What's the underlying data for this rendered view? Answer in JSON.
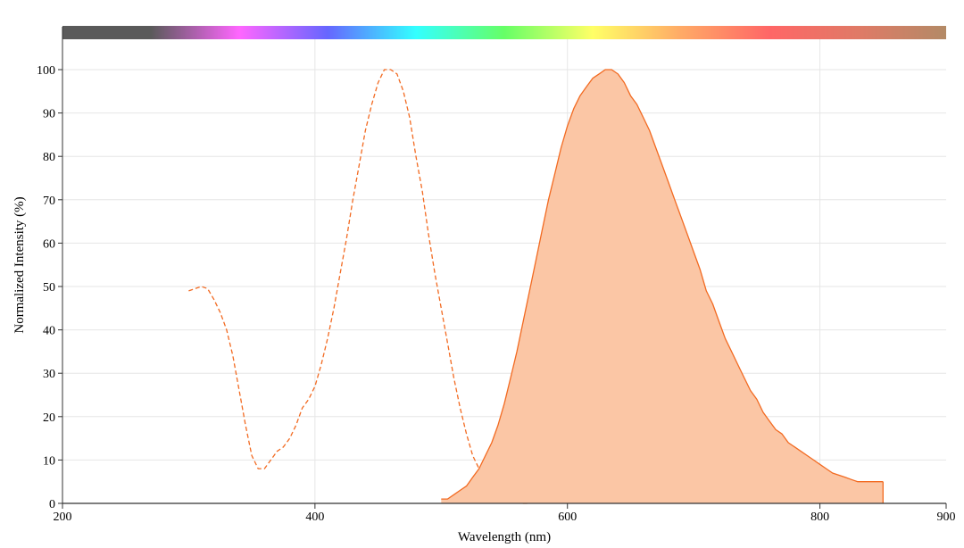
{
  "chart_data": {
    "type": "area",
    "xlabel": "Wavelength (nm)",
    "ylabel": "Normalized Intensity (%)",
    "xlim": [
      200,
      900
    ],
    "ylim": [
      0,
      105
    ],
    "x_ticks": [
      200,
      400,
      600,
      800,
      900
    ],
    "y_ticks": [
      0,
      10,
      20,
      30,
      40,
      50,
      60,
      70,
      80,
      90,
      100
    ],
    "grid": true,
    "legend": "none",
    "colors": {
      "series": "#f26a21",
      "fill": "#fbc6a5",
      "grid": "#e6e6e6",
      "axis": "#333333"
    },
    "spectrum_bar_colors": [
      "#5a5a5a",
      "#5a5a5a",
      "#ff66ff",
      "#6666ff",
      "#33ffff",
      "#66ff66",
      "#ffff66",
      "#ffaa66",
      "#ff6666",
      "#e07a66",
      "#b38a66"
    ],
    "series": [
      {
        "style": "dashed",
        "filled": false,
        "points": [
          [
            300,
            49
          ],
          [
            305,
            49.5
          ],
          [
            310,
            50
          ],
          [
            315,
            49.5
          ],
          [
            320,
            47
          ],
          [
            325,
            44
          ],
          [
            330,
            40
          ],
          [
            335,
            34
          ],
          [
            340,
            26
          ],
          [
            345,
            18
          ],
          [
            350,
            11
          ],
          [
            355,
            8
          ],
          [
            360,
            8
          ],
          [
            365,
            10
          ],
          [
            370,
            12
          ],
          [
            375,
            13
          ],
          [
            380,
            15
          ],
          [
            385,
            18
          ],
          [
            390,
            22
          ],
          [
            395,
            24
          ],
          [
            400,
            27
          ],
          [
            405,
            32
          ],
          [
            410,
            38
          ],
          [
            415,
            45
          ],
          [
            420,
            53
          ],
          [
            425,
            61
          ],
          [
            430,
            70
          ],
          [
            435,
            78
          ],
          [
            440,
            86
          ],
          [
            445,
            92
          ],
          [
            450,
            97
          ],
          [
            455,
            100
          ],
          [
            460,
            100
          ],
          [
            465,
            99
          ],
          [
            470,
            95
          ],
          [
            475,
            89
          ],
          [
            480,
            80
          ],
          [
            485,
            72
          ],
          [
            490,
            62
          ],
          [
            495,
            53
          ],
          [
            500,
            45
          ],
          [
            505,
            37
          ],
          [
            510,
            29
          ],
          [
            515,
            22
          ],
          [
            520,
            16
          ],
          [
            525,
            11
          ],
          [
            530,
            8
          ],
          [
            535,
            5.5
          ],
          [
            540,
            4
          ],
          [
            545,
            2.5
          ],
          [
            550,
            1.5
          ],
          [
            555,
            0.5
          ],
          [
            560,
            0.3
          ],
          [
            565,
            0
          ],
          [
            570,
            0
          ],
          [
            575,
            1
          ],
          [
            580,
            1
          ],
          [
            585,
            1
          ],
          [
            590,
            1
          ],
          [
            595,
            1
          ],
          [
            600,
            2
          ]
        ]
      },
      {
        "style": "solid",
        "filled": true,
        "points": [
          [
            500,
            1
          ],
          [
            505,
            1
          ],
          [
            510,
            2
          ],
          [
            515,
            3
          ],
          [
            520,
            4
          ],
          [
            525,
            6
          ],
          [
            530,
            8
          ],
          [
            535,
            11
          ],
          [
            540,
            14
          ],
          [
            545,
            18
          ],
          [
            550,
            23
          ],
          [
            555,
            29
          ],
          [
            560,
            35
          ],
          [
            565,
            42
          ],
          [
            570,
            49
          ],
          [
            575,
            56
          ],
          [
            580,
            63
          ],
          [
            585,
            70
          ],
          [
            590,
            76
          ],
          [
            595,
            82
          ],
          [
            600,
            87
          ],
          [
            605,
            91
          ],
          [
            610,
            94
          ],
          [
            615,
            96
          ],
          [
            620,
            98
          ],
          [
            625,
            99
          ],
          [
            630,
            100
          ],
          [
            635,
            100
          ],
          [
            640,
            99
          ],
          [
            645,
            97
          ],
          [
            650,
            94
          ],
          [
            655,
            92
          ],
          [
            660,
            89
          ],
          [
            665,
            86
          ],
          [
            670,
            82
          ],
          [
            675,
            78
          ],
          [
            680,
            74
          ],
          [
            685,
            70
          ],
          [
            690,
            66
          ],
          [
            695,
            62
          ],
          [
            700,
            58
          ],
          [
            705,
            54
          ],
          [
            710,
            49
          ],
          [
            715,
            46
          ],
          [
            720,
            42
          ],
          [
            725,
            38
          ],
          [
            730,
            35
          ],
          [
            735,
            32
          ],
          [
            740,
            29
          ],
          [
            745,
            26
          ],
          [
            750,
            24
          ],
          [
            755,
            21
          ],
          [
            760,
            19
          ],
          [
            765,
            17
          ],
          [
            770,
            16
          ],
          [
            775,
            14
          ],
          [
            780,
            13
          ],
          [
            785,
            12
          ],
          [
            790,
            11
          ],
          [
            795,
            10
          ],
          [
            800,
            9
          ],
          [
            805,
            8
          ],
          [
            810,
            7
          ],
          [
            815,
            6.5
          ],
          [
            820,
            6
          ],
          [
            825,
            5.5
          ],
          [
            830,
            5
          ],
          [
            835,
            5
          ],
          [
            840,
            5
          ],
          [
            845,
            5
          ],
          [
            850,
            5
          ]
        ]
      }
    ]
  }
}
